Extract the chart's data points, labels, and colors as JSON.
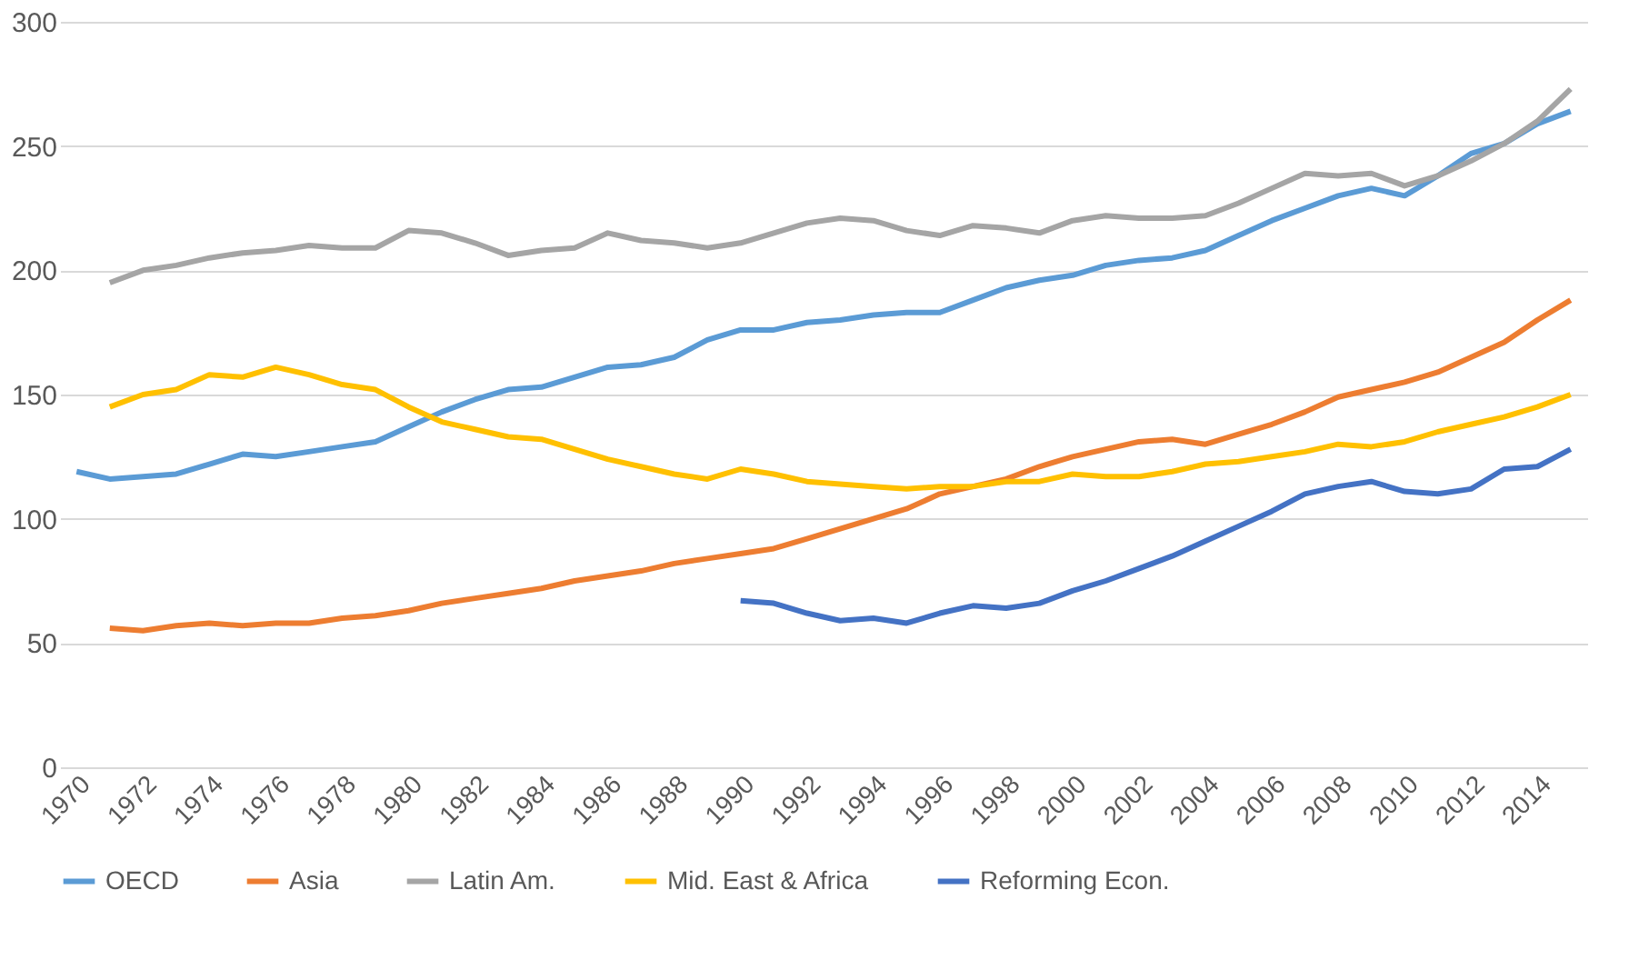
{
  "chart_data": {
    "type": "line",
    "categories": [
      "1970",
      null,
      "1972",
      null,
      "1974",
      null,
      "1976",
      null,
      "1978",
      null,
      "1980",
      null,
      "1982",
      null,
      "1984",
      null,
      "1986",
      null,
      "1988",
      null,
      "1990",
      null,
      "1992",
      null,
      "1994",
      null,
      "1996",
      null,
      "1998",
      null,
      "2000",
      null,
      "2002",
      null,
      "2004",
      null,
      "2006",
      null,
      "2008",
      null,
      "2010",
      null,
      "2012",
      null,
      "2014",
      null
    ],
    "series": [
      {
        "name": "OECD",
        "color": "#5b9bd5",
        "values": [
          119,
          116,
          117,
          118,
          122,
          126,
          125,
          127,
          129,
          131,
          137,
          143,
          148,
          152,
          153,
          157,
          161,
          162,
          165,
          172,
          176,
          176,
          179,
          180,
          182,
          183,
          183,
          188,
          193,
          196,
          198,
          202,
          204,
          205,
          208,
          214,
          220,
          225,
          230,
          233,
          230,
          238,
          247,
          251,
          259,
          264
        ]
      },
      {
        "name": "Asia",
        "color": "#ed7d31",
        "values": [
          null,
          56,
          55,
          57,
          58,
          57,
          58,
          58,
          60,
          61,
          63,
          66,
          68,
          70,
          72,
          75,
          77,
          79,
          82,
          84,
          86,
          88,
          92,
          96,
          100,
          104,
          110,
          113,
          116,
          121,
          125,
          128,
          131,
          132,
          130,
          134,
          138,
          143,
          149,
          152,
          155,
          159,
          165,
          171,
          180,
          188
        ]
      },
      {
        "name": "Latin Am.",
        "color": "#a5a5a5",
        "values": [
          null,
          195,
          200,
          202,
          205,
          207,
          208,
          210,
          209,
          209,
          216,
          215,
          211,
          206,
          208,
          209,
          215,
          212,
          211,
          209,
          211,
          215,
          219,
          221,
          220,
          216,
          214,
          218,
          217,
          215,
          220,
          222,
          221,
          221,
          222,
          227,
          233,
          239,
          238,
          239,
          234,
          238,
          244,
          251,
          260,
          273
        ]
      },
      {
        "name": "Mid. East & Africa",
        "color": "#ffc000",
        "values": [
          null,
          145,
          150,
          152,
          158,
          157,
          161,
          158,
          154,
          152,
          145,
          139,
          136,
          133,
          132,
          128,
          124,
          121,
          118,
          116,
          120,
          118,
          115,
          114,
          113,
          112,
          113,
          113,
          115,
          115,
          118,
          117,
          117,
          119,
          122,
          123,
          125,
          127,
          130,
          129,
          131,
          135,
          138,
          141,
          145,
          150
        ]
      },
      {
        "name": "Reforming Econ.",
        "color": "#4472c4",
        "values": [
          null,
          null,
          null,
          null,
          null,
          null,
          null,
          null,
          null,
          null,
          null,
          null,
          null,
          null,
          null,
          null,
          null,
          null,
          null,
          null,
          67,
          66,
          62,
          59,
          60,
          58,
          62,
          65,
          64,
          66,
          71,
          75,
          80,
          85,
          91,
          97,
          103,
          110,
          113,
          115,
          111,
          110,
          112,
          120,
          121,
          128
        ]
      }
    ],
    "ylim": [
      0,
      300
    ],
    "yticks": [
      0,
      50,
      100,
      150,
      200,
      250,
      300
    ],
    "grid": "y",
    "legend": "bottom",
    "line_style": "solid",
    "marker": "none"
  }
}
